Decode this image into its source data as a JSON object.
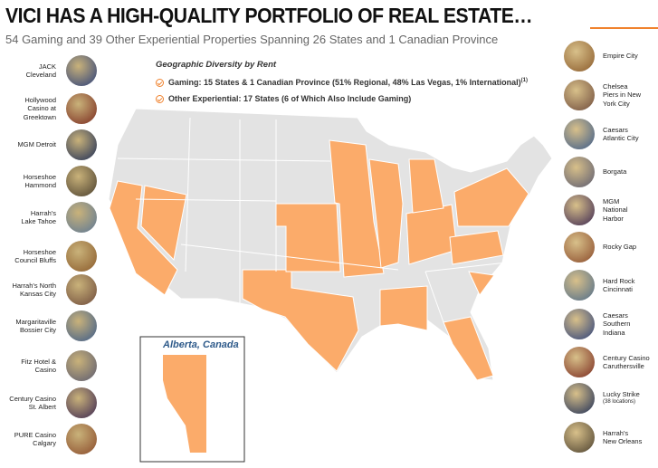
{
  "header": {
    "title": "VICI HAS A HIGH-QUALITY PORTFOLIO OF REAL ESTATE…",
    "subtitle": "54 Gaming and 39 Other Experiential Properties Spanning 26 States and 1 Canadian Province"
  },
  "legend": {
    "heading": "Geographic Diversity by Rent",
    "items": [
      {
        "text": "Gaming: 15 States & 1 Canadian Province (51% Regional, 48% Las Vegas, 1% International)",
        "note": "(1)"
      },
      {
        "text": "Other Experiential: 17 States (6 of Which Also Include Gaming)"
      }
    ]
  },
  "inset": {
    "label": "Alberta, Canada"
  },
  "left_properties": [
    "JACK\nCleveland",
    "Hollywood\nCasino at\nGreektown",
    "MGM Detroit",
    "Horseshoe\nHammond",
    "Harrah's\nLake Tahoe",
    "Horseshoe\nCouncil Bluffs",
    "Harrah's North\nKansas City",
    "Margaritaville\nBossier City",
    "Fitz Hotel &\nCasino",
    "Century Casino\nSt. Albert",
    "PURE Casino\nCalgary"
  ],
  "right_properties": [
    {
      "name": "Empire City"
    },
    {
      "name": "Chelsea\nPiers in New\nYork City"
    },
    {
      "name": "Caesars\nAtlantic City"
    },
    {
      "name": "Borgata"
    },
    {
      "name": "MGM\nNational\nHarbor"
    },
    {
      "name": "Rocky Gap"
    },
    {
      "name": "Hard Rock\nCincinnati"
    },
    {
      "name": "Caesars\nSouthern\nIndiana"
    },
    {
      "name": "Century Casino\nCaruthersville"
    },
    {
      "name": "Lucky Strike",
      "note": "(38 locations)"
    },
    {
      "name": "Harrah's\nNew Orleans"
    }
  ]
}
